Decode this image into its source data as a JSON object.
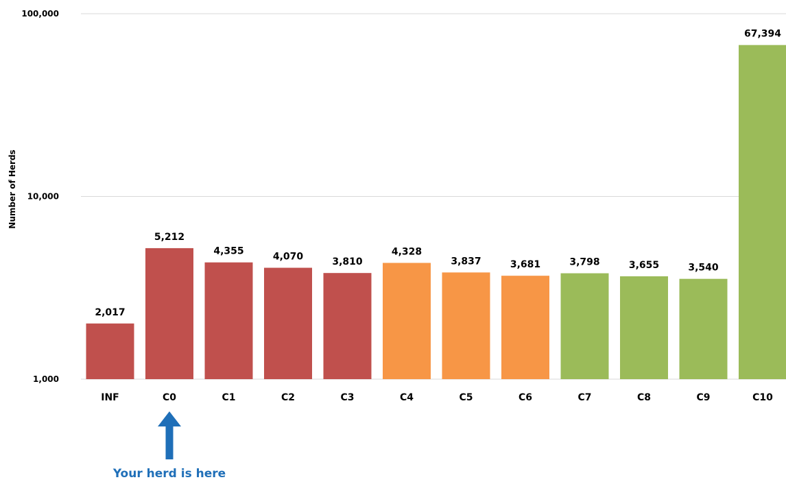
{
  "chart_data": {
    "type": "bar",
    "ylabel": "Number of Herds",
    "xlabel": "",
    "yscale": "log",
    "ylim": [
      1000,
      100000
    ],
    "ytick_values": [
      1000,
      10000,
      100000
    ],
    "ytick_labels": [
      "1,000",
      "10,000",
      "100,000"
    ],
    "grid": true,
    "categories": [
      "INF",
      "C0",
      "C1",
      "C2",
      "C3",
      "C4",
      "C5",
      "C6",
      "C7",
      "C8",
      "C9",
      "C10"
    ],
    "values": [
      2017,
      5212,
      4355,
      4070,
      3810,
      4328,
      3837,
      3681,
      3798,
      3655,
      3540,
      67394
    ],
    "value_labels": [
      "2,017",
      "5,212",
      "4,355",
      "4,070",
      "3,810",
      "4,328",
      "3,837",
      "3,681",
      "3,798",
      "3,655",
      "3,540",
      "67,394"
    ],
    "bar_colors": [
      "#c0504d",
      "#c0504d",
      "#c0504d",
      "#c0504d",
      "#c0504d",
      "#f79646",
      "#f79646",
      "#f79646",
      "#9bbb59",
      "#9bbb59",
      "#9bbb59",
      "#9bbb59"
    ],
    "annotation": {
      "text": "Your herd is here",
      "target_category": "C0",
      "color": "#1f6fb8",
      "arrow_color": "#1f6fb8"
    }
  },
  "colors": {
    "red": "#c0504d",
    "orange": "#f79646",
    "green": "#9bbb59",
    "grid": "#d9d9d9",
    "annotation": "#1f6fb8"
  }
}
